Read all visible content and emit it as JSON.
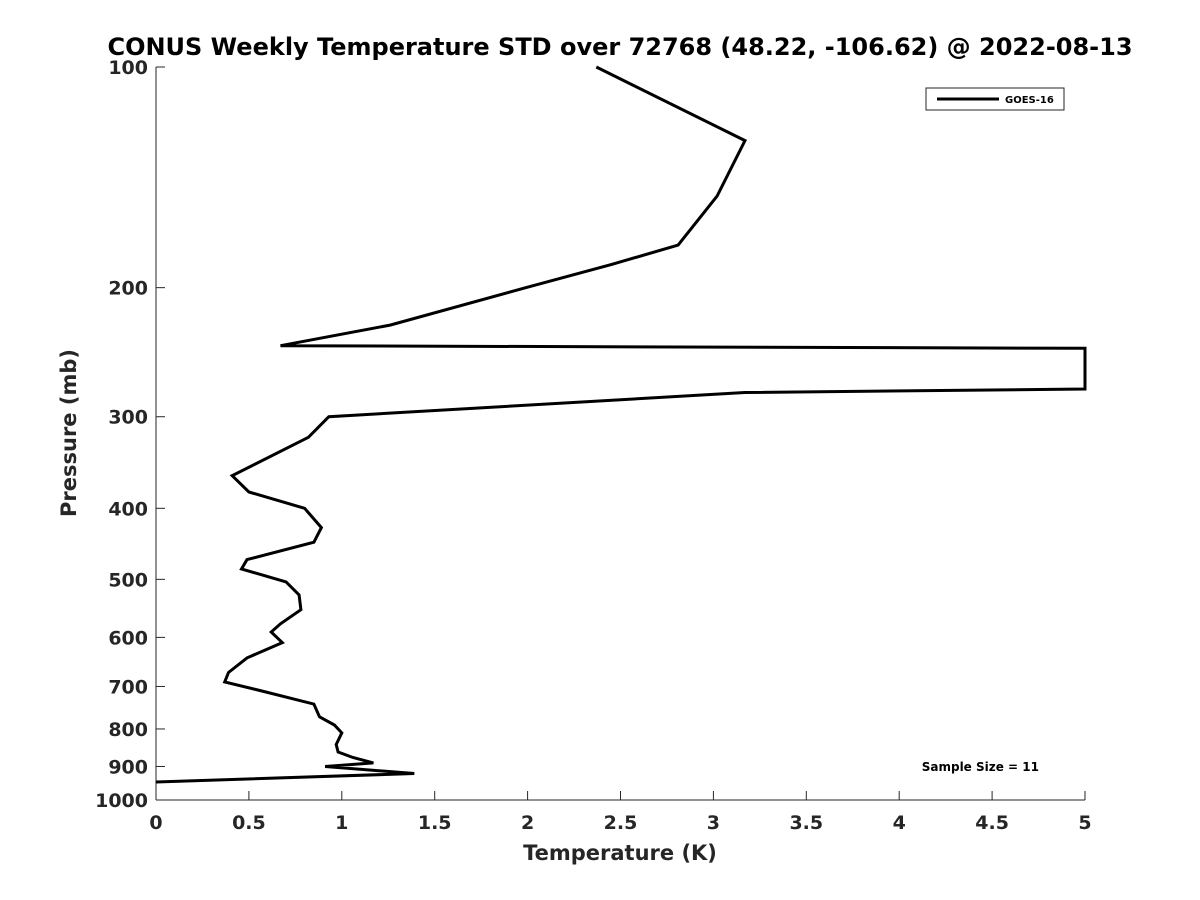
{
  "chart_data": {
    "type": "line",
    "title": "CONUS Weekly Temperature STD over 72768 (48.22, -106.62) @ 2022-08-13",
    "xlabel": "Temperature (K)",
    "ylabel": "Pressure (mb)",
    "xlim": [
      0,
      5
    ],
    "ylim": [
      100,
      1000
    ],
    "y_scale": "log",
    "y_reversed": true,
    "x_ticks": [
      "0",
      "0.5",
      "1",
      "1.5",
      "2",
      "2.5",
      "3",
      "3.5",
      "4",
      "4.5",
      "5"
    ],
    "x_tick_values": [
      0,
      0.5,
      1,
      1.5,
      2,
      2.5,
      3,
      3.5,
      4,
      4.5,
      5
    ],
    "y_ticks": [
      "100",
      "200",
      "300",
      "400",
      "500",
      "600",
      "700",
      "800",
      "900",
      "1000"
    ],
    "y_tick_values": [
      100,
      200,
      300,
      400,
      500,
      600,
      700,
      800,
      900,
      1000
    ],
    "grid": false,
    "legend_position": "top-right",
    "annotation": "Sample Size = 11",
    "series": [
      {
        "name": "GOES-16",
        "color": "#000000",
        "points": [
          [
            2.37,
            100
          ],
          [
            3.17,
            126
          ],
          [
            3.02,
            150
          ],
          [
            2.81,
            175
          ],
          [
            2.45,
            186
          ],
          [
            1.99,
            200
          ],
          [
            1.26,
            225
          ],
          [
            0.67,
            240
          ],
          [
            5.0,
            242
          ],
          [
            5.0,
            275
          ],
          [
            3.17,
            278
          ],
          [
            0.93,
            300
          ],
          [
            0.82,
            320
          ],
          [
            0.41,
            361
          ],
          [
            0.5,
            380
          ],
          [
            0.8,
            400
          ],
          [
            0.89,
            425
          ],
          [
            0.85,
            445
          ],
          [
            0.49,
            470
          ],
          [
            0.46,
            484
          ],
          [
            0.7,
            504
          ],
          [
            0.77,
            525
          ],
          [
            0.78,
            550
          ],
          [
            0.67,
            575
          ],
          [
            0.62,
            590
          ],
          [
            0.68,
            610
          ],
          [
            0.49,
            640
          ],
          [
            0.39,
            670
          ],
          [
            0.37,
            690
          ],
          [
            0.57,
            710
          ],
          [
            0.85,
            740
          ],
          [
            0.88,
            770
          ],
          [
            0.96,
            790
          ],
          [
            1.0,
            810
          ],
          [
            0.97,
            840
          ],
          [
            0.98,
            860
          ],
          [
            1.06,
            875
          ],
          [
            1.17,
            890
          ],
          [
            0.91,
            900
          ],
          [
            1.39,
            920
          ],
          [
            0.0,
            945
          ]
        ]
      }
    ]
  }
}
